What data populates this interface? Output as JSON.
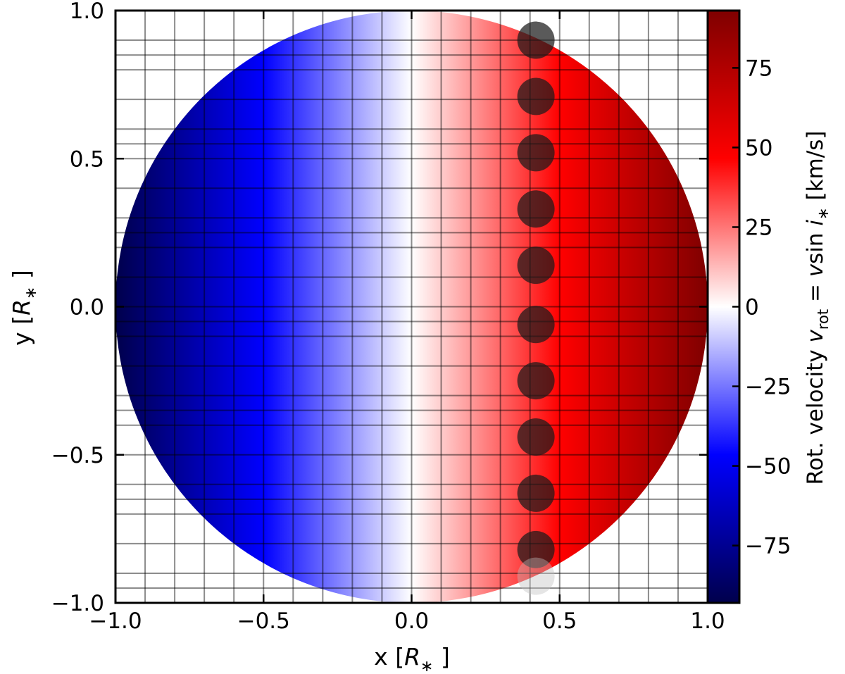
{
  "chart_data": {
    "type": "heatmap",
    "title": "",
    "xlabel": {
      "main": "x [",
      "sym": "R",
      "sub": "∗",
      "end": " ]"
    },
    "ylabel": {
      "main": "y [",
      "sym": "R",
      "sub": "∗",
      "end": " ]"
    },
    "xlim": [
      -1.0,
      1.0
    ],
    "ylim": [
      -1.0,
      1.0
    ],
    "x_ticks": [
      -1.0,
      -0.5,
      0.0,
      0.5,
      1.0
    ],
    "x_tick_labels": [
      "−1.0",
      "−0.5",
      "0.0",
      "0.5",
      "1.0"
    ],
    "y_ticks": [
      -1.0,
      -0.5,
      0.0,
      0.5,
      1.0
    ],
    "y_tick_labels": [
      "−1.0",
      "−0.5",
      "0.0",
      "0.5",
      "1.0"
    ],
    "grid": true,
    "grid_x": [
      -1.0,
      -0.9,
      -0.8,
      -0.7,
      -0.6,
      -0.5,
      -0.4,
      -0.3,
      -0.2,
      -0.1,
      0.0,
      0.1,
      0.2,
      0.3,
      0.4,
      0.5,
      0.6,
      0.7,
      0.8,
      0.9,
      1.0
    ],
    "grid_y": [
      -1.0,
      -0.95,
      -0.9,
      -0.8,
      -0.7,
      -0.65,
      -0.6,
      -0.5,
      -0.4,
      -0.35,
      -0.3,
      -0.2,
      -0.1,
      -0.05,
      0.0,
      0.1,
      0.2,
      0.25,
      0.3,
      0.4,
      0.5,
      0.55,
      0.6,
      0.7,
      0.8,
      0.85,
      0.9,
      1.0
    ],
    "stellar_disk": {
      "center": [
        0,
        0
      ],
      "radius": 1.0,
      "vsini_max": 93
    },
    "colormap": {
      "name": "seismic",
      "vmin": -93,
      "vmax": 93,
      "colors": [
        "#00004c",
        "#0000ff",
        "#ffffff",
        "#ff0000",
        "#7f0000"
      ]
    },
    "planet_transit": {
      "radius": 0.063,
      "points": [
        {
          "x": 0.42,
          "y": 0.9
        },
        {
          "x": 0.42,
          "y": 0.71
        },
        {
          "x": 0.42,
          "y": 0.52
        },
        {
          "x": 0.42,
          "y": 0.33
        },
        {
          "x": 0.42,
          "y": 0.14
        },
        {
          "x": 0.42,
          "y": -0.06
        },
        {
          "x": 0.42,
          "y": -0.25
        },
        {
          "x": 0.42,
          "y": -0.44
        },
        {
          "x": 0.42,
          "y": -0.63
        },
        {
          "x": 0.42,
          "y": -0.82
        },
        {
          "x": 0.42,
          "y": -0.91
        }
      ]
    },
    "colorbar": {
      "ticks": [
        -75,
        -50,
        -25,
        0,
        25,
        50,
        75
      ],
      "tick_labels": [
        "−75",
        "−50",
        "−25",
        "0",
        "25",
        "50",
        "75"
      ],
      "label": {
        "pre": "Rot. velocity ",
        "v": "v",
        "rot": "rot",
        "eq": " = ",
        "v2": "v",
        "sin": "sin ",
        "i": "i",
        "star": "∗",
        "unit": "  [km/s]"
      }
    }
  }
}
